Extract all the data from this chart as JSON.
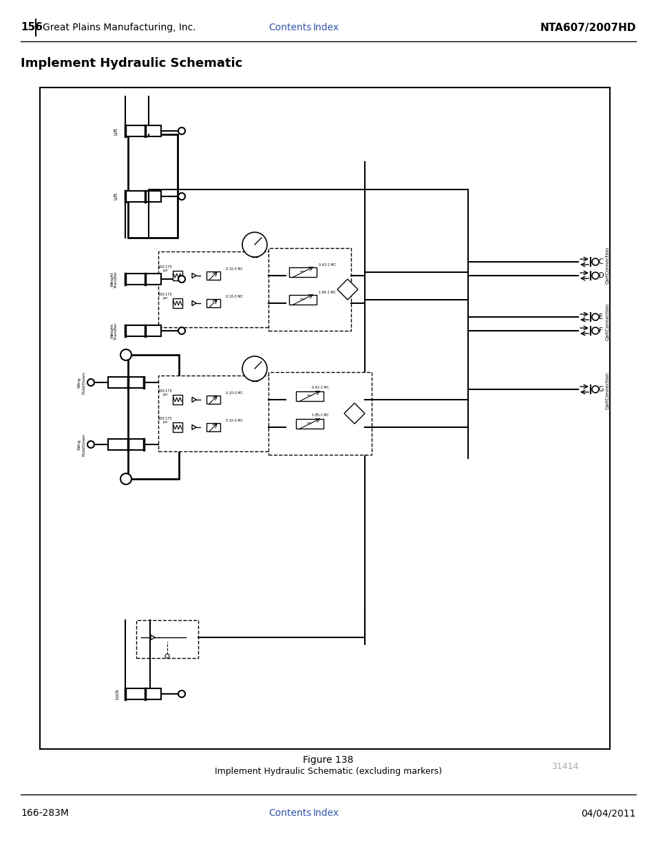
{
  "page_num": "156",
  "company": "Great Plains Manufacturing, Inc.",
  "nav_links": [
    "Contents",
    "Index"
  ],
  "doc_id": "NTA607/2007HD",
  "footer_left": "166-283M",
  "footer_right": "04/04/2011",
  "section_title": "Implement Hydraulic Schematic",
  "fig_num": "Figure 138",
  "fig_caption": "Implement Hydraulic Schematic (excluding markers)",
  "fig_id": "31414",
  "bg_color": "#ffffff",
  "link_color": "#3355aa",
  "gray_color": "#aaaaaa"
}
